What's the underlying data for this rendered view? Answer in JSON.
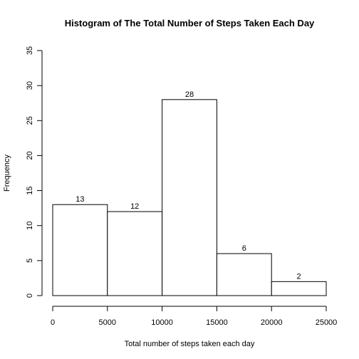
{
  "chart_data": {
    "type": "bar",
    "title": "Histogram of The Total Number of Steps Taken Each Day",
    "xlabel": "Total number of steps taken each day",
    "ylabel": "Frequency",
    "bins": [
      {
        "from": 0,
        "to": 5000,
        "value": 13
      },
      {
        "from": 5000,
        "to": 10000,
        "value": 12
      },
      {
        "from": 10000,
        "to": 15000,
        "value": 28
      },
      {
        "from": 15000,
        "to": 20000,
        "value": 6
      },
      {
        "from": 20000,
        "to": 25000,
        "value": 2
      }
    ],
    "data_labels": [
      "13",
      "12",
      "28",
      "6",
      "2"
    ],
    "xlim": [
      0,
      25000
    ],
    "ylim": [
      0,
      35
    ],
    "xticks": [
      0,
      5000,
      10000,
      15000,
      20000,
      25000
    ],
    "xtick_labels": [
      "0",
      "5000",
      "10000",
      "15000",
      "20000",
      "25000"
    ],
    "yticks": [
      0,
      5,
      10,
      15,
      20,
      25,
      30,
      35
    ],
    "ytick_labels": [
      "0",
      "5",
      "10",
      "15",
      "20",
      "25",
      "30",
      "35"
    ],
    "grid": false,
    "legend": "none"
  }
}
